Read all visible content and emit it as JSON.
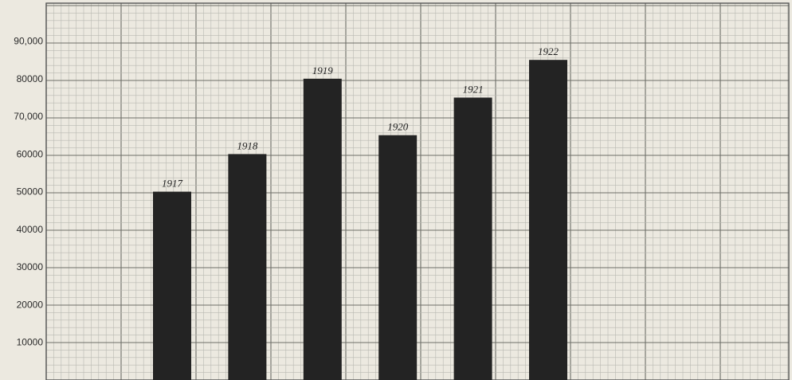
{
  "chart_data": {
    "type": "bar",
    "categories": [
      "1917",
      "1918",
      "1919",
      "1920",
      "1921",
      "1922"
    ],
    "values": [
      50000,
      60000,
      80000,
      65000,
      75000,
      85000
    ],
    "y_tick_labels": [
      "10000",
      "20000",
      "30000",
      "40000",
      "50000",
      "60000",
      "70,000",
      "80000",
      "90,000"
    ],
    "y_tick_values": [
      10000,
      20000,
      30000,
      40000,
      50000,
      60000,
      70000,
      80000,
      90000
    ],
    "ylim": [
      0,
      100000
    ],
    "grid": true,
    "legend": "none",
    "colors": {
      "bar": "#232323",
      "background": "#ece9e0",
      "grid_minor": "#b9b9b2",
      "grid_major": "#6e6e68"
    }
  }
}
